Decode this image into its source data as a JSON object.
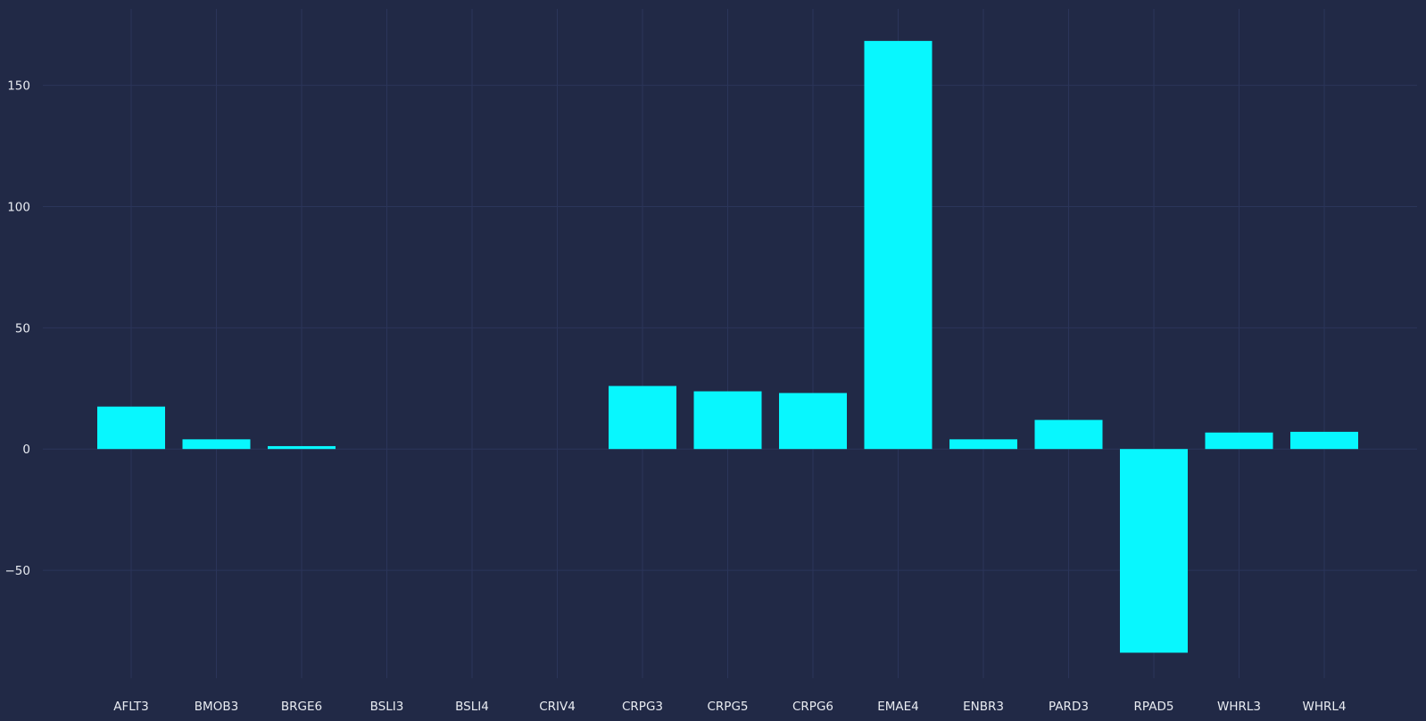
{
  "chart_data": {
    "type": "bar",
    "title": "",
    "xlabel": "",
    "ylabel": "",
    "categories": [
      "AFLT3",
      "BMOB3",
      "BRGE6",
      "BSLI3",
      "BSLI4",
      "CRIV4",
      "CRPG3",
      "CRPG5",
      "CRPG6",
      "EMAE4",
      "ENBR3",
      "PARD3",
      "RPAD5",
      "WHRL3",
      "WHRL4"
    ],
    "values": [
      17.5,
      4.0,
      1.2,
      0,
      0,
      0,
      26.0,
      23.8,
      23.1,
      168.3,
      4.0,
      12.0,
      -84.0,
      6.8,
      7.1
    ],
    "ylim": [
      -94.5,
      181.5
    ],
    "yticks": [
      -50,
      0,
      50,
      100,
      150
    ],
    "ytick_labels": [
      "−50",
      "0",
      "50",
      "100",
      "150"
    ],
    "grid": true,
    "legend": "none",
    "colors": {
      "background": "#212946",
      "bar": "#08F7FE",
      "grid": "#2b355a",
      "text": "#e9ecf2"
    }
  }
}
